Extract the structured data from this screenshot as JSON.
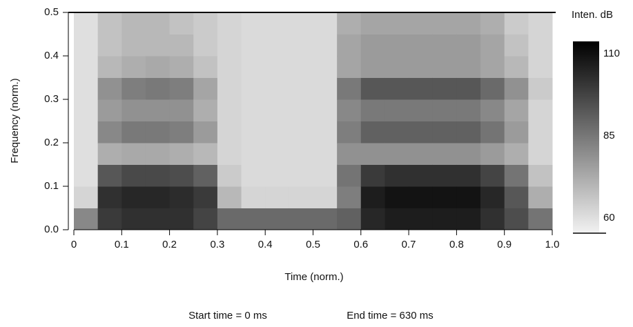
{
  "chart_data": {
    "type": "spectrogram",
    "xlabel": "Time (norm.)",
    "ylabel": "Frequency (norm.)",
    "xlim": [
      0,
      1
    ],
    "ylim": [
      0,
      0.5
    ],
    "xticks": [
      0,
      0.1,
      0.2,
      0.3,
      0.4,
      0.5,
      0.6,
      0.7,
      0.8,
      0.9,
      {
        "value": 1,
        "label": "1.0"
      }
    ],
    "yticks": [
      {
        "value": 0,
        "label": "0.0"
      },
      0.1,
      0.2,
      0.3,
      0.4,
      0.5
    ],
    "xbins": [
      0,
      0.05,
      0.1,
      0.15,
      0.2,
      0.25,
      0.3,
      0.35,
      0.4,
      0.45,
      0.5,
      0.55,
      0.6,
      0.65,
      0.7,
      0.75,
      0.8,
      0.85,
      0.9,
      0.95,
      1
    ],
    "ybins": [
      0,
      0.05,
      0.1,
      0.15,
      0.2,
      0.25,
      0.3,
      0.35,
      0.4,
      0.45,
      0.5
    ],
    "values": [
      [
        82,
        66,
        64,
        64,
        64,
        64,
        64,
        64,
        64,
        64
      ],
      [
        98,
        100,
        92,
        74,
        82,
        78,
        80,
        72,
        70,
        70
      ],
      [
        100,
        102,
        95,
        75,
        85,
        80,
        84,
        74,
        72,
        72
      ],
      [
        100,
        102,
        95,
        75,
        85,
        80,
        85,
        75,
        72,
        72
      ],
      [
        100,
        101,
        94,
        74,
        84,
        80,
        84,
        74,
        72,
        70
      ],
      [
        96,
        98,
        90,
        72,
        78,
        74,
        76,
        70,
        68,
        68
      ],
      [
        88,
        72,
        68,
        66,
        66,
        66,
        66,
        66,
        66,
        66
      ],
      [
        88,
        66,
        65,
        65,
        65,
        65,
        65,
        65,
        65,
        65
      ],
      [
        88,
        66,
        65,
        65,
        65,
        65,
        65,
        65,
        65,
        65
      ],
      [
        88,
        66,
        65,
        65,
        65,
        65,
        65,
        65,
        65,
        65
      ],
      [
        88,
        66,
        65,
        65,
        65,
        65,
        65,
        65,
        65,
        65
      ],
      [
        90,
        84,
        86,
        80,
        84,
        82,
        85,
        76,
        76,
        74
      ],
      [
        102,
        104,
        98,
        80,
        90,
        85,
        92,
        78,
        78,
        76
      ],
      [
        104,
        106,
        100,
        80,
        90,
        85,
        92,
        78,
        78,
        76
      ],
      [
        104,
        106,
        100,
        80,
        90,
        85,
        92,
        78,
        78,
        76
      ],
      [
        104,
        106,
        100,
        80,
        90,
        85,
        92,
        78,
        78,
        76
      ],
      [
        104,
        106,
        100,
        80,
        90,
        85,
        92,
        78,
        78,
        76
      ],
      [
        100,
        102,
        96,
        78,
        86,
        82,
        88,
        76,
        76,
        74
      ],
      [
        94,
        92,
        86,
        74,
        78,
        76,
        80,
        72,
        70,
        68
      ],
      [
        86,
        74,
        70,
        66,
        66,
        66,
        68,
        66,
        66,
        66
      ]
    ],
    "colorbar_label": "Inten. dB",
    "clim": [
      60,
      110
    ],
    "cticks": [
      60,
      85,
      110
    ],
    "cmap": [
      "#f2f2f2",
      "#000000"
    ],
    "start_text": "Start time =  0 ms",
    "end_text": "End time = 630 ms"
  }
}
